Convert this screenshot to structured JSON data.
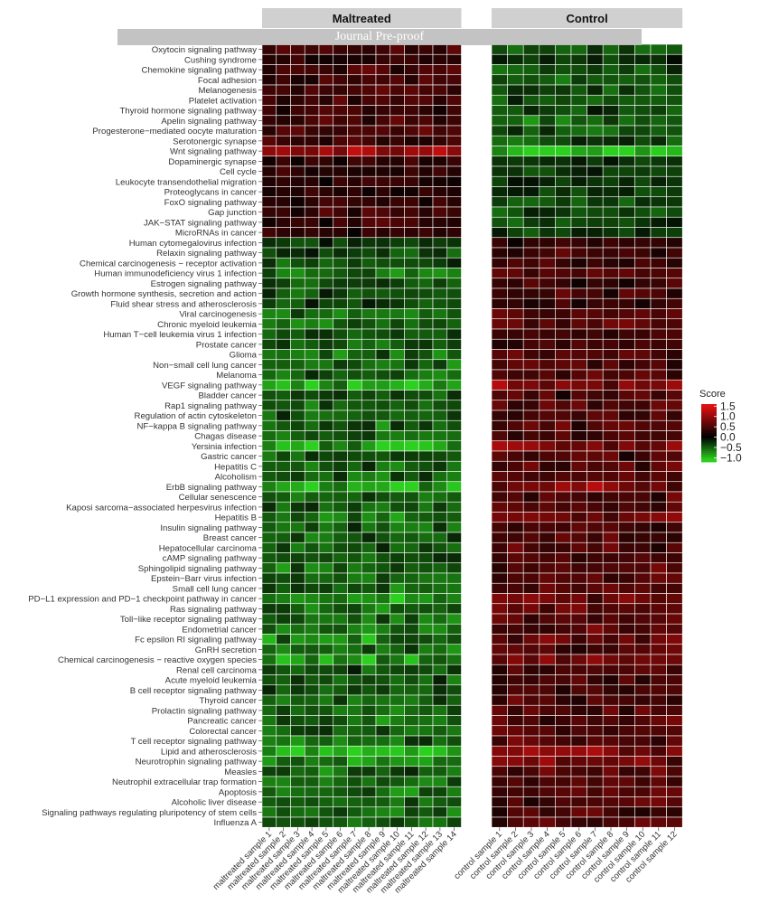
{
  "watermark": "Journal Pre-proof",
  "chart_data": {
    "type": "heatmap",
    "title": "",
    "panels": [
      "Maltreated",
      "Control"
    ],
    "maltreated_samples": [
      "maltreated sample 1",
      "maltreated sample 2",
      "maltreated sample 3",
      "maltreated sample 4",
      "maltreated sample 5",
      "maltreated sample 6",
      "maltreated sample 7",
      "maltreated sample 8",
      "maltreated sample 9",
      "maltreated sample 10",
      "maltreated sample 11",
      "maltreated sample 12",
      "maltreated sample 13",
      "maltreated sample 14"
    ],
    "control_samples": [
      "control sample 1",
      "control sample 2",
      "control sample 3",
      "control sample 4",
      "control sample 5",
      "control sample 6",
      "control sample 7",
      "control sample 8",
      "control sample 9",
      "control sample 10",
      "control sample 11",
      "control sample 12"
    ],
    "pathways": [
      "Oxytocin signaling pathway",
      "Cushing syndrome",
      "Chemokine signaling pathway",
      "Focal adhesion",
      "Melanogenesis",
      "Platelet activation",
      "Thyroid hormone signaling pathway",
      "Apelin signaling pathway",
      "Progesterone−mediated oocyte maturation",
      "Serotonergic synapse",
      "Wnt signaling pathway",
      "Dopaminergic synapse",
      "Cell cycle",
      "Leukocyte transendothelial migration",
      "Proteoglycans in cancer",
      "FoxO signaling pathway",
      "Gap junction",
      "JAK−STAT signaling pathway",
      "MicroRNAs in cancer",
      "Human cytomegalovirus infection",
      "Relaxin signaling pathway",
      "Chemical carcinogenesis − receptor activation",
      "Human immunodeficiency virus 1 infection",
      "Estrogen signaling pathway",
      "Growth hormone synthesis, secretion and action",
      "Fluid shear stress and atherosclerosis",
      "Viral carcinogenesis",
      "Chronic myeloid leukemia",
      "Human T−cell leukemia virus 1 infection",
      "Prostate cancer",
      "Glioma",
      "Non−small cell lung cancer",
      "Melanoma",
      "VEGF signaling pathway",
      "Bladder cancer",
      "Rap1 signaling pathway",
      "Regulation of actin cytoskeleton",
      "NF−kappa B signaling pathway",
      "Chagas disease",
      "Yersinia infection",
      "Gastric cancer",
      "Hepatitis C",
      "Alcoholism",
      "ErbB signaling pathway",
      "Cellular senescence",
      "Kaposi sarcoma−associated herpesvirus infection",
      "Hepatitis B",
      "Insulin signaling pathway",
      "Breast cancer",
      "Hepatocellular carcinoma",
      "cAMP signaling pathway",
      "Sphingolipid signaling pathway",
      "Epstein−Barr virus infection",
      "Small cell lung cancer",
      "PD−L1 expression and PD−1 checkpoint pathway in cancer",
      "Ras signaling pathway",
      "Toll−like receptor signaling pathway",
      "Endometrial cancer",
      "Fc epsilon RI signaling pathway",
      "GnRH secretion",
      "Chemical carcinogenesis − reactive oxygen species",
      "Renal cell carcinoma",
      "Acute myeloid leukemia",
      "B cell receptor signaling pathway",
      "Thyroid cancer",
      "Prolactin signaling pathway",
      "Pancreatic cancer",
      "Colorectal cancer",
      "T cell receptor signaling pathway",
      "Lipid and atherosclerosis",
      "Neurotrophin signaling pathway",
      "Measles",
      "Neutrophil extracellular trap formation",
      "Apoptosis",
      "Alcoholic liver disease",
      "Signaling pathways regulating pluripotency of stem cells",
      "Influenza A"
    ],
    "cluster_direction": [
      1,
      1,
      1,
      1,
      1,
      1,
      1,
      1,
      1,
      1,
      1,
      1,
      1,
      1,
      1,
      1,
      1,
      1,
      1,
      -1,
      -1,
      -1,
      -1,
      -1,
      -1,
      -1,
      -1,
      -1,
      -1,
      -1,
      -1,
      -1,
      -1,
      -1,
      -1,
      -1,
      -1,
      -1,
      -1,
      -1,
      -1,
      -1,
      -1,
      -1,
      -1,
      -1,
      -1,
      -1,
      -1,
      -1,
      -1,
      -1,
      -1,
      -1,
      -1,
      -1,
      -1,
      -1,
      -1,
      -1,
      -1,
      -1,
      -1,
      -1,
      -1,
      -1,
      -1,
      -1,
      -1,
      -1,
      -1,
      -1,
      -1,
      -1,
      -1,
      -1,
      -1
    ],
    "row_strength": [
      0.45,
      0.35,
      0.5,
      0.5,
      0.5,
      0.55,
      0.4,
      0.6,
      0.5,
      0.45,
      1.15,
      0.3,
      0.3,
      0.3,
      0.3,
      0.45,
      0.45,
      0.4,
      0.35,
      0.35,
      0.45,
      0.45,
      0.7,
      0.45,
      0.5,
      0.4,
      0.55,
      0.6,
      0.5,
      0.55,
      0.6,
      0.65,
      0.6,
      1.0,
      0.5,
      0.55,
      0.55,
      0.6,
      0.6,
      1.0,
      0.55,
      0.6,
      0.6,
      0.95,
      0.55,
      0.55,
      0.75,
      0.55,
      0.55,
      0.55,
      0.5,
      0.6,
      0.6,
      0.6,
      0.9,
      0.65,
      0.65,
      0.65,
      0.85,
      0.6,
      0.95,
      0.5,
      0.5,
      0.55,
      0.55,
      0.55,
      0.6,
      0.6,
      0.6,
      1.0,
      0.9,
      0.6,
      0.6,
      0.75,
      0.6,
      0.55,
      0.55
    ],
    "legend": {
      "title": "Score",
      "ticks": [
        "1.5",
        "1.0",
        "0.5",
        "0.0",
        "−0.5",
        "−1.0"
      ],
      "range": [
        -1.2,
        1.6
      ],
      "low_color": "#2bd11e",
      "mid_color": "#000000",
      "high_color": "#e01010"
    }
  }
}
